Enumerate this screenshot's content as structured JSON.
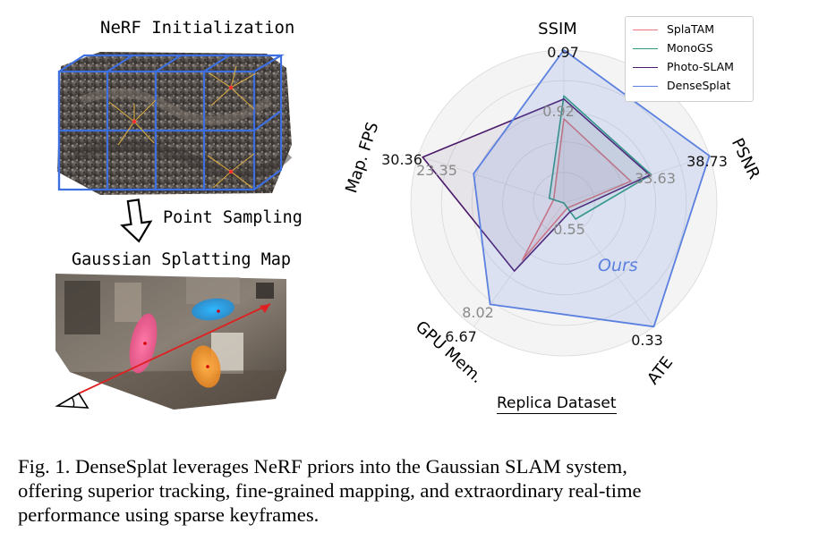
{
  "figure": {
    "nerf_title": "NeRF Initialization",
    "sampling_label": "Point Sampling",
    "gs_title": "Gaussian Splatting Map",
    "dataset_label": "Replica Dataset",
    "ours_label": "Ours"
  },
  "chart_data": {
    "type": "radar",
    "axes": [
      "SSIM",
      "PSNR",
      "ATE",
      "GPU Mem.",
      "Map. FPS"
    ],
    "reference_ticks": {
      "SSIM": [
        "0.92",
        "0.97"
      ],
      "PSNR": [
        "33.63",
        "38.73"
      ],
      "ATE": [
        "0.55",
        "0.33"
      ],
      "GPU Mem.": [
        "8.02",
        "6.67"
      ],
      "Map. FPS": [
        "23.35",
        "30.36"
      ]
    },
    "series": [
      {
        "name": "SplaTAM",
        "color": "#e8787a",
        "values": [
          0.55,
          0.46,
          0.04,
          0.46,
          0.07
        ]
      },
      {
        "name": "MonoGS",
        "color": "#2e9b7e",
        "values": [
          0.7,
          0.6,
          0.13,
          0.0,
          0.1
        ]
      },
      {
        "name": "Photo-SLAM",
        "color": "#4b1a6a",
        "values": [
          0.68,
          0.59,
          0.07,
          0.55,
          0.97
        ]
      },
      {
        "name": "DenseSplat",
        "color": "#5b80e0",
        "values": [
          1.0,
          1.0,
          1.0,
          0.82,
          0.62
        ]
      }
    ],
    "rings": 5,
    "legend_position": "top-right",
    "grid": true
  },
  "caption": {
    "lines": [
      "Fig. 1.  DenseSplat leverages NeRF priors into the Gaussian SLAM system,",
      "offering superior tracking, fine-grained mapping, and extraordinary real-time",
      "performance using sparse keyframes."
    ]
  }
}
